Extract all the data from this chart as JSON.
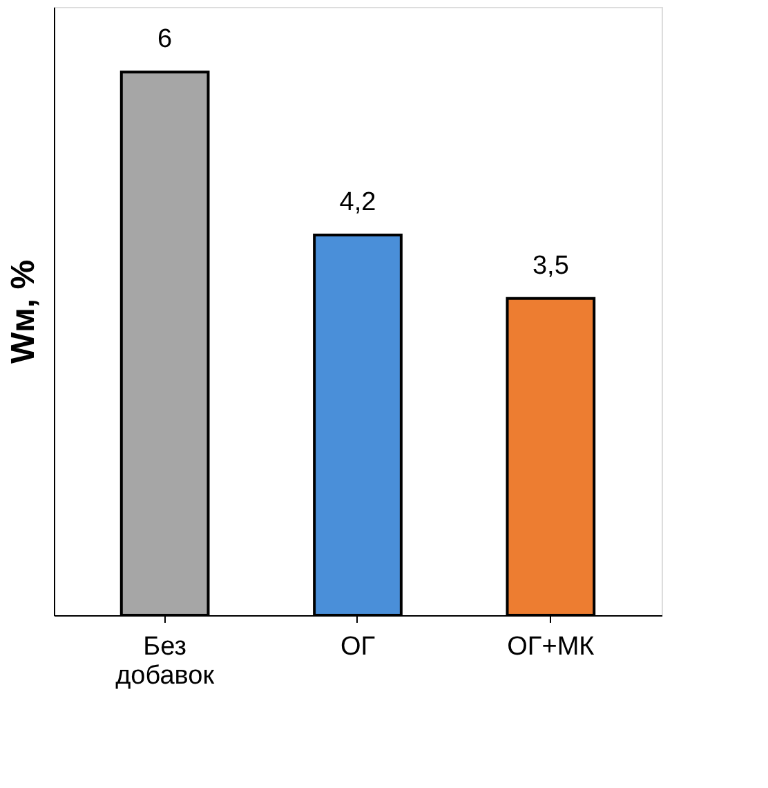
{
  "chart_data": {
    "type": "bar",
    "ylabel": "Wм, %",
    "categories": [
      "Без добавок",
      "ОГ",
      "ОГ+МК"
    ],
    "values": [
      6,
      4.2,
      3.5
    ],
    "colors": [
      "#a6a6a6",
      "#4a8fd9",
      "#ed7d31"
    ],
    "value_labels": [
      "6",
      "4,2",
      "3,5"
    ],
    "tick_labels": "x",
    "grid": false
  }
}
